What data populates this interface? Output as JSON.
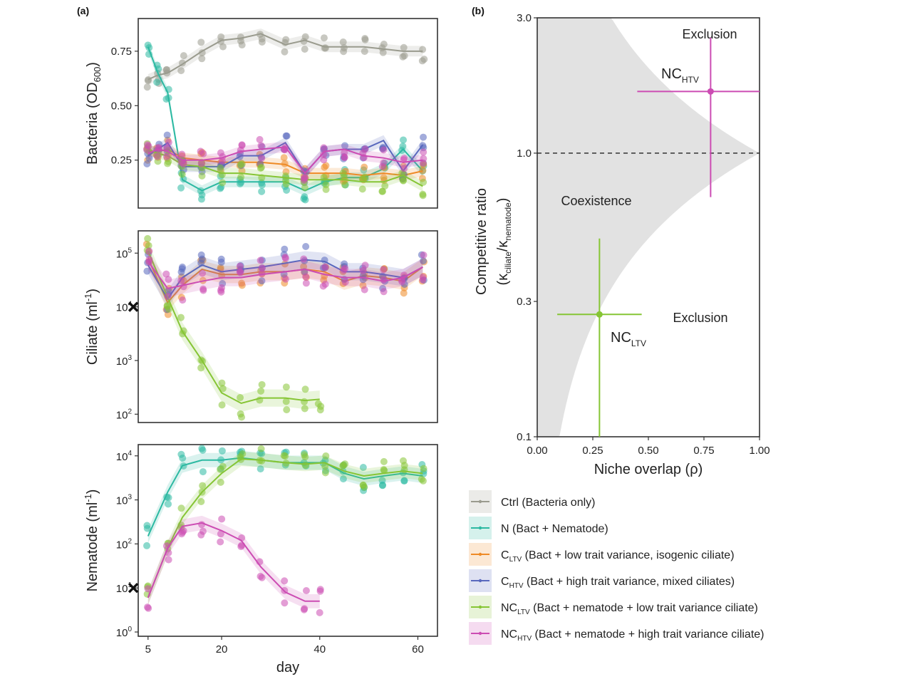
{
  "panel_labels": [
    "(a)",
    "(b)"
  ],
  "colors": {
    "ctrl": "#9a9b8e",
    "n": "#2cb9a2",
    "c_ltv": "#ee8a26",
    "c_htv": "#5868bd",
    "nc_ltv": "#86c535",
    "nc_htv": "#cc4cb3",
    "shade": "#e2e2e2"
  },
  "legend": [
    {
      "key": "ctrl",
      "text": "Ctrl (Bacteria only)",
      "sub": "",
      "rest": ""
    },
    {
      "key": "n",
      "text": "N (Bact + Nematode)",
      "sub": "",
      "rest": ""
    },
    {
      "key": "c_ltv",
      "text": "C",
      "sub": "LTV",
      "rest": " (Bact + low trait variance, isogenic ciliate)"
    },
    {
      "key": "c_htv",
      "text": "C",
      "sub": "HTV",
      "rest": " (Bact + high trait variance, mixed ciliates)"
    },
    {
      "key": "nc_ltv",
      "text": "NC",
      "sub": "LTV",
      "rest": " (Bact + nematode + low trait variance ciliate)"
    },
    {
      "key": "nc_htv",
      "text": "NC",
      "sub": "HTV",
      "rest": " (Bact + nematode + high trait variance ciliate)"
    }
  ],
  "chart_data": [
    {
      "id": "bacteria",
      "type": "line",
      "ylabel": "Bacteria (OD",
      "ylabel_sub": "600",
      "ylabel_end": ")",
      "xlim": [
        3,
        64
      ],
      "ylim": [
        0.03,
        0.9
      ],
      "yticks": [
        0.25,
        0.5,
        0.75
      ],
      "ytick_labels": [
        "0.25",
        "0.50",
        "0.75"
      ],
      "series": [
        {
          "key": "ctrl",
          "x": [
            5,
            7,
            9,
            12,
            16,
            20,
            24,
            28,
            33,
            37,
            41,
            45,
            49,
            53,
            57,
            61
          ],
          "y": [
            0.62,
            0.64,
            0.65,
            0.69,
            0.75,
            0.8,
            0.81,
            0.83,
            0.78,
            0.8,
            0.77,
            0.77,
            0.77,
            0.76,
            0.75,
            0.75
          ]
        },
        {
          "key": "n",
          "x": [
            5,
            7,
            9,
            12,
            16,
            20,
            24,
            28,
            33,
            37,
            41,
            45,
            49,
            53,
            57,
            61
          ],
          "y": [
            0.77,
            0.65,
            0.56,
            0.16,
            0.11,
            0.15,
            0.15,
            0.15,
            0.15,
            0.11,
            0.15,
            0.17,
            0.17,
            0.21,
            0.3,
            0.2
          ]
        },
        {
          "key": "c_ltv",
          "x": [
            5,
            7,
            9,
            12,
            16,
            20,
            24,
            28,
            33,
            37,
            41,
            45,
            49,
            53,
            57,
            61
          ],
          "y": [
            0.29,
            0.29,
            0.3,
            0.26,
            0.25,
            0.24,
            0.24,
            0.24,
            0.23,
            0.19,
            0.19,
            0.19,
            0.18,
            0.19,
            0.18,
            0.2
          ]
        },
        {
          "key": "c_htv",
          "x": [
            5,
            7,
            9,
            12,
            16,
            20,
            24,
            28,
            33,
            37,
            41,
            45,
            49,
            53,
            57,
            61
          ],
          "y": [
            0.27,
            0.3,
            0.33,
            0.22,
            0.22,
            0.22,
            0.27,
            0.27,
            0.33,
            0.19,
            0.29,
            0.3,
            0.3,
            0.34,
            0.2,
            0.32
          ]
        },
        {
          "key": "nc_ltv",
          "x": [
            5,
            7,
            9,
            12,
            16,
            20,
            24,
            28,
            33,
            37,
            41,
            45,
            49,
            53,
            57,
            61
          ],
          "y": [
            0.3,
            0.28,
            0.27,
            0.23,
            0.22,
            0.19,
            0.19,
            0.18,
            0.17,
            0.16,
            0.16,
            0.16,
            0.15,
            0.15,
            0.18,
            0.13
          ]
        },
        {
          "key": "nc_htv",
          "x": [
            5,
            7,
            9,
            12,
            16,
            20,
            24,
            28,
            33,
            37,
            41,
            45,
            49,
            53,
            57,
            61
          ],
          "y": [
            0.28,
            0.3,
            0.29,
            0.25,
            0.25,
            0.26,
            0.29,
            0.3,
            0.31,
            0.19,
            0.29,
            0.3,
            0.27,
            0.26,
            0.24,
            0.25
          ]
        }
      ]
    },
    {
      "id": "ciliate",
      "type": "line",
      "yscale": "log",
      "ylabel": "Ciliate (ml",
      "ylabel_sup": "-1",
      "ylabel_end": ")",
      "xlim": [
        3,
        64
      ],
      "ylim": [
        70,
        260000
      ],
      "yticks": [
        100,
        1000,
        10000,
        100000
      ],
      "ytick_labels": [
        {
          "base": "10",
          "exp": "2"
        },
        {
          "base": "10",
          "exp": "3"
        },
        {
          "base": "10",
          "exp": "4"
        },
        {
          "base": "10",
          "exp": "5"
        }
      ],
      "initial_marker": {
        "x": 2,
        "y": 10000
      },
      "series": [
        {
          "key": "c_ltv",
          "x": [
            5,
            9,
            12,
            16,
            20,
            24,
            28,
            33,
            37,
            41,
            45,
            49,
            53,
            57,
            61
          ],
          "y": [
            80000,
            12000,
            25000,
            50000,
            40000,
            40000,
            45000,
            45000,
            50000,
            45000,
            30000,
            38000,
            35000,
            30000,
            55000
          ]
        },
        {
          "key": "c_htv",
          "x": [
            5,
            9,
            12,
            16,
            20,
            24,
            28,
            33,
            37,
            41,
            45,
            49,
            53,
            57,
            61
          ],
          "y": [
            60000,
            14000,
            35000,
            60000,
            45000,
            50000,
            55000,
            65000,
            75000,
            70000,
            45000,
            45000,
            40000,
            35000,
            55000
          ]
        },
        {
          "key": "nc_ltv",
          "x": [
            5,
            9,
            12,
            16,
            20,
            24,
            28,
            33,
            37,
            40
          ],
          "y": [
            110000,
            15000,
            3500,
            1000,
            250,
            160,
            200,
            200,
            180,
            190
          ]
        },
        {
          "key": "nc_htv",
          "x": [
            5,
            9,
            12,
            16,
            20,
            24,
            28,
            33,
            37,
            41,
            45,
            49,
            53,
            57,
            61
          ],
          "y": [
            70000,
            22000,
            25000,
            30000,
            35000,
            35000,
            40000,
            45000,
            50000,
            40000,
            35000,
            35000,
            30000,
            35000,
            55000
          ]
        }
      ]
    },
    {
      "id": "nematode",
      "type": "line",
      "yscale": "log",
      "ylabel": "Nematode (ml",
      "ylabel_sup": "-1",
      "ylabel_end": ")",
      "xlim": [
        3,
        64
      ],
      "ylim": [
        0.8,
        18000
      ],
      "yticks": [
        1,
        10,
        100,
        1000,
        10000
      ],
      "ytick_labels": [
        {
          "base": "10",
          "exp": "0"
        },
        {
          "base": "10",
          "exp": "1"
        },
        {
          "base": "10",
          "exp": "2"
        },
        {
          "base": "10",
          "exp": "3"
        },
        {
          "base": "10",
          "exp": "4"
        }
      ],
      "xlabel": "day",
      "xticks": [
        5,
        20,
        40,
        60
      ],
      "xtick_labels": [
        "5",
        "20",
        "40",
        "60"
      ],
      "initial_marker": {
        "x": 2,
        "y": 10
      },
      "series": [
        {
          "key": "n",
          "x": [
            5,
            9,
            12,
            16,
            20,
            24,
            28,
            33,
            37,
            41,
            45,
            49,
            53,
            57,
            61
          ],
          "y": [
            150,
            1500,
            6000,
            8000,
            8000,
            9000,
            8000,
            7000,
            7000,
            7000,
            4000,
            3000,
            3500,
            4000,
            3500
          ]
        },
        {
          "key": "nc_ltv",
          "x": [
            5,
            9,
            12,
            16,
            20,
            24,
            28,
            33,
            37,
            41,
            45,
            49,
            53,
            57,
            61
          ],
          "y": [
            6,
            80,
            400,
            1500,
            4000,
            8500,
            8000,
            7000,
            6500,
            7000,
            4500,
            3500,
            4000,
            4500,
            4000
          ]
        },
        {
          "key": "nc_htv",
          "x": [
            5,
            9,
            12,
            16,
            20,
            24,
            28,
            33,
            37,
            40
          ],
          "y": [
            6,
            80,
            250,
            300,
            200,
            120,
            30,
            8,
            5,
            5
          ]
        }
      ]
    },
    {
      "id": "niche",
      "type": "scatter",
      "xlabel": "Niche overlap (ρ)",
      "ylabel_line1": "Competitive ratio",
      "ylabel_line2": {
        "pre": "(κ",
        "sub1": "ciliate",
        "mid": "/κ",
        "sub2": "nematode",
        "end": ")"
      },
      "xlim": [
        0,
        1
      ],
      "ylim": [
        0.1,
        3.0
      ],
      "yscale": "log",
      "xticks": [
        0,
        0.25,
        0.5,
        0.75,
        1.0
      ],
      "xtick_labels": [
        "0.00",
        "0.25",
        "0.50",
        "0.75",
        "1.00"
      ],
      "yticks": [
        0.1,
        0.3,
        1.0,
        3.0
      ],
      "ytick_labels": [
        "0.1",
        "0.3",
        "1.0",
        "3.0"
      ],
      "regions": [
        "Coexistence",
        "Exclusion",
        "Exclusion"
      ],
      "reference_line_y": 1.0,
      "points": [
        {
          "key": "nc_htv",
          "label": "NC",
          "sub": "HTV",
          "x": 0.78,
          "y": 1.65,
          "x_err": [
            0.45,
            1.0
          ],
          "y_err": [
            0.7,
            2.55
          ]
        },
        {
          "key": "nc_ltv",
          "label": "NC",
          "sub": "LTV",
          "x": 0.28,
          "y": 0.27,
          "x_err": [
            0.09,
            0.47
          ],
          "y_err": [
            0.1,
            0.5
          ]
        }
      ]
    }
  ]
}
